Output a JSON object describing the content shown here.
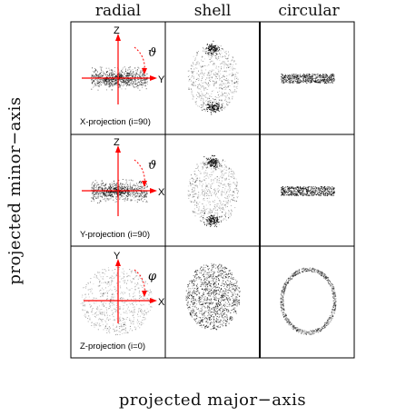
{
  "columns": [
    "radial",
    "shell",
    "circular"
  ],
  "y_title": "projected minor−axis",
  "x_title": "projected major−axis",
  "rows": [
    {
      "projection": "X-projection (i=90)",
      "vertical_axis": "Z",
      "horizontal_axis": "Y",
      "angle": "ϑ"
    },
    {
      "projection": "Y-projection (i=90)",
      "vertical_axis": "Z",
      "horizontal_axis": "X",
      "angle": "ϑ"
    },
    {
      "projection": "Z-projection (i=0)",
      "vertical_axis": "Y",
      "horizontal_axis": "X",
      "angle": "φ"
    }
  ],
  "colors": {
    "axes": "#ff0000",
    "points": "#000000",
    "frame": "#000000"
  }
}
